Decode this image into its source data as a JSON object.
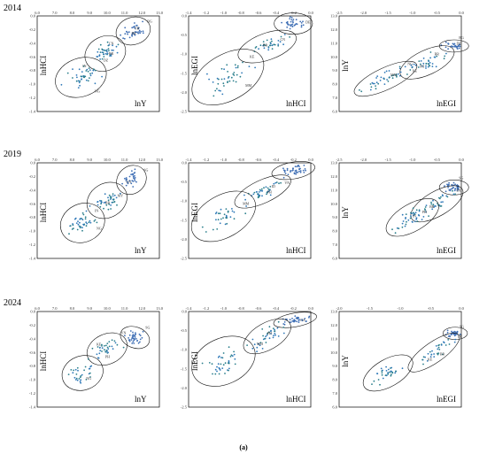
{
  "caption": "(a)",
  "rows": [
    {
      "year": "2014"
    },
    {
      "year": "2019"
    },
    {
      "year": "2024"
    }
  ],
  "chart_data": [
    {
      "type": "scatter",
      "row": 0,
      "col": 0,
      "ylabel": "lnHCI",
      "xlabel": "lnY",
      "xlim": [
        6.0,
        13.0
      ],
      "ylim": [
        -1.4,
        0.0
      ],
      "xticks": [
        "6.0",
        "7.0",
        "8.0",
        "9.0",
        "10.0",
        "11.0",
        "12.0",
        "13.0"
      ],
      "yticks": [
        "0.0",
        "-0.2",
        "-0.4",
        "-0.6",
        "-0.8",
        "-1.0",
        "-1.2",
        "-1.4"
      ],
      "labels": [
        {
          "t": "BG",
          "x": 12.3,
          "y": -0.1
        },
        {
          "t": "FR",
          "x": 11.6,
          "y": -0.2
        },
        {
          "t": "DE",
          "x": 11.4,
          "y": -0.27
        },
        {
          "t": "CN",
          "x": 10.1,
          "y": -0.42
        },
        {
          "t": "BR",
          "x": 10.1,
          "y": -0.57
        },
        {
          "t": "DZ",
          "x": 9.8,
          "y": -0.67
        },
        {
          "t": "IN",
          "x": 8.6,
          "y": -0.75
        },
        {
          "t": "NG",
          "x": 9.3,
          "y": -1.12
        }
      ],
      "ellipses": [
        {
          "cx": 11.5,
          "cy": -0.22,
          "rx": 1.0,
          "ry": 0.2,
          "rot": -18
        },
        {
          "cx": 9.9,
          "cy": -0.55,
          "rx": 1.2,
          "ry": 0.25,
          "rot": -25
        },
        {
          "cx": 8.5,
          "cy": -0.9,
          "rx": 1.5,
          "ry": 0.28,
          "rot": -20
        }
      ],
      "seed": 1
    },
    {
      "type": "scatter",
      "row": 0,
      "col": 1,
      "ylabel": "lnEGI",
      "xlabel": "lnHCI",
      "xlim": [
        -1.4,
        0.0
      ],
      "ylim": [
        -2.5,
        0.0
      ],
      "xticks": [
        "-1.4",
        "-1.2",
        "-1.0",
        "-0.8",
        "-0.6",
        "-0.4",
        "-0.2",
        "0.0"
      ],
      "yticks": [
        "0.0",
        "-0.5",
        "-1.0",
        "-1.5",
        "-2.0",
        "-2.5"
      ],
      "labels": [
        {
          "t": "DE",
          "x": -0.06,
          "y": -0.2
        },
        {
          "t": "CN",
          "x": -0.35,
          "y": -0.65
        },
        {
          "t": "BR",
          "x": -0.55,
          "y": -0.8
        },
        {
          "t": "KE",
          "x": -0.7,
          "y": -1.1
        },
        {
          "t": "MM",
          "x": -0.75,
          "y": -1.85
        }
      ],
      "ellipses": [
        {
          "cx": -0.2,
          "cy": -0.2,
          "rx": 0.22,
          "ry": 0.28,
          "rot": 0
        },
        {
          "cx": -0.5,
          "cy": -0.8,
          "rx": 0.35,
          "ry": 0.35,
          "rot": -20
        },
        {
          "cx": -0.95,
          "cy": -1.6,
          "rx": 0.45,
          "ry": 0.6,
          "rot": -30
        }
      ],
      "seed": 2
    },
    {
      "type": "scatter",
      "row": 0,
      "col": 2,
      "ylabel": "lnY",
      "xlabel": "lnEGI",
      "xlim": [
        -2.5,
        0.0
      ],
      "ylim": [
        6.0,
        13.0
      ],
      "xticks": [
        "-2.5",
        "-2.0",
        "-1.5",
        "-1.0",
        "-0.5",
        "0.0"
      ],
      "yticks": [
        "13.0",
        "12.0",
        "11.0",
        "10.0",
        "9.0",
        "8.0",
        "7.0",
        "6.0"
      ],
      "labels": [
        {
          "t": "BG",
          "x": -0.05,
          "y": 11.3
        },
        {
          "t": "DE",
          "x": -0.1,
          "y": 10.9
        },
        {
          "t": "BR",
          "x": -0.55,
          "y": 10.1
        },
        {
          "t": "PH",
          "x": -0.85,
          "y": 9.2
        },
        {
          "t": "KE",
          "x": -1.0,
          "y": 8.9
        },
        {
          "t": "NG",
          "x": -1.1,
          "y": 9.4
        },
        {
          "t": "MM",
          "x": -1.45,
          "y": 8.6
        }
      ],
      "ellipses": [
        {
          "cx": -0.15,
          "cy": 10.8,
          "rx": 0.3,
          "ry": 0.45,
          "rot": 0
        },
        {
          "cx": -0.7,
          "cy": 9.6,
          "rx": 0.6,
          "ry": 0.9,
          "rot": -25
        },
        {
          "cx": -1.55,
          "cy": 8.4,
          "rx": 0.7,
          "ry": 0.8,
          "rot": -25
        }
      ],
      "seed": 3
    },
    {
      "type": "scatter",
      "row": 1,
      "col": 0,
      "ylabel": "lnHCI",
      "xlabel": "lnY",
      "xlim": [
        6.0,
        13.0
      ],
      "ylim": [
        -1.4,
        0.0
      ],
      "xticks": [
        "6.0",
        "7.0",
        "8.0",
        "9.0",
        "10.0",
        "11.0",
        "12.0",
        "13.0"
      ],
      "yticks": [
        "0.0",
        "-0.2",
        "-0.4",
        "-0.6",
        "-0.8",
        "-1.0",
        "-1.2",
        "-1.4"
      ],
      "labels": [
        {
          "t": "SG",
          "x": 12.1,
          "y": -0.12
        },
        {
          "t": "CN",
          "x": 11.1,
          "y": -0.3
        },
        {
          "t": "MY",
          "x": 10.6,
          "y": -0.5
        },
        {
          "t": "BR",
          "x": 9.9,
          "y": -0.6
        },
        {
          "t": "IN",
          "x": 9.3,
          "y": -0.72
        },
        {
          "t": "NG",
          "x": 9.4,
          "y": -0.98
        }
      ],
      "ellipses": [
        {
          "cx": 11.4,
          "cy": -0.25,
          "rx": 0.9,
          "ry": 0.2,
          "rot": -40
        },
        {
          "cx": 10.0,
          "cy": -0.55,
          "rx": 1.2,
          "ry": 0.25,
          "rot": -30
        },
        {
          "cx": 8.6,
          "cy": -0.88,
          "rx": 1.3,
          "ry": 0.28,
          "rot": -25
        }
      ],
      "seed": 4
    },
    {
      "type": "scatter",
      "row": 1,
      "col": 1,
      "ylabel": "lnEGI",
      "xlabel": "lnHCI",
      "xlim": [
        -1.4,
        0.0
      ],
      "ylim": [
        -2.5,
        0.0
      ],
      "xticks": [
        "-1.4",
        "-1.2",
        "-1.0",
        "-0.8",
        "-0.6",
        "-0.4",
        "-0.2",
        "0.0"
      ],
      "yticks": [
        "0.0",
        "-0.5",
        "-1.0",
        "-1.5",
        "-2.0",
        "-2.5"
      ],
      "labels": [
        {
          "t": "VN",
          "x": -0.3,
          "y": -0.55
        },
        {
          "t": "PH",
          "x": -0.5,
          "y": -0.8
        },
        {
          "t": "MM",
          "x": -0.78,
          "y": -1.1
        },
        {
          "t": "ID",
          "x": -0.45,
          "y": -0.65
        }
      ],
      "ellipses": [
        {
          "cx": -0.2,
          "cy": -0.2,
          "rx": 0.25,
          "ry": 0.22,
          "rot": -10
        },
        {
          "cx": -0.55,
          "cy": -0.75,
          "rx": 0.35,
          "ry": 0.3,
          "rot": -25
        },
        {
          "cx": -1.0,
          "cy": -1.4,
          "rx": 0.4,
          "ry": 0.55,
          "rot": -30
        }
      ],
      "seed": 5
    },
    {
      "type": "scatter",
      "row": 1,
      "col": 2,
      "ylabel": "lnY",
      "xlabel": "lnEGI",
      "xlim": [
        -2.5,
        0.0
      ],
      "ylim": [
        6.0,
        13.0
      ],
      "xticks": [
        "-2.5",
        "-2.0",
        "-1.5",
        "-1.0",
        "-0.5",
        "0.0"
      ],
      "yticks": [
        "13.0",
        "12.0",
        "11.0",
        "10.0",
        "9.0",
        "8.0",
        "7.0",
        "6.0"
      ],
      "labels": [
        {
          "t": "SG",
          "x": -0.05,
          "y": 11.8
        },
        {
          "t": "DE",
          "x": -0.1,
          "y": 10.9
        },
        {
          "t": "BR",
          "x": -0.65,
          "y": 9.7
        },
        {
          "t": "PH",
          "x": -0.8,
          "y": 9.3
        },
        {
          "t": "IN",
          "x": -1.0,
          "y": 9.0
        }
      ],
      "ellipses": [
        {
          "cx": -0.15,
          "cy": 11.2,
          "rx": 0.3,
          "ry": 0.55,
          "rot": 0
        },
        {
          "cx": -0.5,
          "cy": 10.0,
          "rx": 0.6,
          "ry": 0.9,
          "rot": -30
        },
        {
          "cx": -1.0,
          "cy": 9.0,
          "rx": 0.6,
          "ry": 1.0,
          "rot": -30
        }
      ],
      "seed": 6
    },
    {
      "type": "scatter",
      "row": 2,
      "col": 0,
      "ylabel": "lnHCI",
      "xlabel": "lnY",
      "xlim": [
        6.0,
        13.0
      ],
      "ylim": [
        -1.4,
        0.0
      ],
      "xticks": [
        "6.0",
        "7.0",
        "8.0",
        "9.0",
        "10.0",
        "11.0",
        "12.0",
        "13.0"
      ],
      "yticks": [
        "0.0",
        "-0.2",
        "-0.4",
        "-0.6",
        "-0.8",
        "-1.0",
        "-1.2",
        "-1.4"
      ],
      "labels": [
        {
          "t": "SG",
          "x": 12.2,
          "y": -0.25
        },
        {
          "t": "VN",
          "x": 10.8,
          "y": -0.33
        },
        {
          "t": "KE",
          "x": 9.4,
          "y": -0.5
        },
        {
          "t": "PH",
          "x": 9.9,
          "y": -0.68
        },
        {
          "t": "NG",
          "x": 8.8,
          "y": -1.0
        }
      ],
      "ellipses": [
        {
          "cx": 11.6,
          "cy": -0.38,
          "rx": 0.6,
          "ry": 0.22,
          "rot": -70
        },
        {
          "cx": 10.0,
          "cy": -0.55,
          "rx": 1.2,
          "ry": 0.22,
          "rot": -25
        },
        {
          "cx": 8.6,
          "cy": -0.9,
          "rx": 1.2,
          "ry": 0.25,
          "rot": -20
        }
      ],
      "seed": 7
    },
    {
      "type": "scatter",
      "row": 2,
      "col": 1,
      "ylabel": "lnEGI",
      "xlabel": "lnHCI",
      "xlim": [
        -1.4,
        0.0
      ],
      "ylim": [
        -2.5,
        0.0
      ],
      "xticks": [
        "-1.4",
        "-1.2",
        "-1.0",
        "-0.8",
        "-0.6",
        "-0.4",
        "-0.2",
        "0.0"
      ],
      "yticks": [
        "0.0",
        "-0.5",
        "-1.0",
        "-1.5",
        "-2.0",
        "-2.5"
      ],
      "labels": [
        {
          "t": "CA",
          "x": -0.12,
          "y": -0.25
        },
        {
          "t": "PH",
          "x": -0.5,
          "y": -0.6
        },
        {
          "t": "MM",
          "x": -0.62,
          "y": -0.88
        }
      ],
      "ellipses": [
        {
          "cx": -0.18,
          "cy": -0.22,
          "rx": 0.25,
          "ry": 0.18,
          "rot": -10
        },
        {
          "cx": -0.5,
          "cy": -0.65,
          "rx": 0.3,
          "ry": 0.35,
          "rot": -30
        },
        {
          "cx": -1.0,
          "cy": -1.3,
          "rx": 0.38,
          "ry": 0.6,
          "rot": -25
        }
      ],
      "seed": 8
    },
    {
      "type": "scatter",
      "row": 2,
      "col": 2,
      "ylabel": "lnY",
      "xlabel": "lnEGI",
      "xlim": [
        -2.0,
        0.0
      ],
      "ylim": [
        6.0,
        13.0
      ],
      "xticks": [
        "-2.0",
        "-1.5",
        "-1.0",
        "-0.5",
        "0.0"
      ],
      "yticks": [
        "13.0",
        "12.0",
        "11.0",
        "10.0",
        "9.0",
        "8.0",
        "7.0",
        "6.0"
      ],
      "labels": [
        {
          "t": "SG",
          "x": -0.03,
          "y": 11.8
        },
        {
          "t": "DE",
          "x": -0.06,
          "y": 11.1
        },
        {
          "t": "BR",
          "x": -0.35,
          "y": 9.8
        },
        {
          "t": "KE",
          "x": -0.55,
          "y": 9.4
        }
      ],
      "ellipses": [
        {
          "cx": -0.1,
          "cy": 11.4,
          "rx": 0.2,
          "ry": 0.45,
          "rot": 0
        },
        {
          "cx": -0.45,
          "cy": 10.0,
          "rx": 0.5,
          "ry": 0.75,
          "rot": -35
        },
        {
          "cx": -1.2,
          "cy": 8.5,
          "rx": 0.45,
          "ry": 1.0,
          "rot": -30
        }
      ],
      "seed": 9
    }
  ]
}
